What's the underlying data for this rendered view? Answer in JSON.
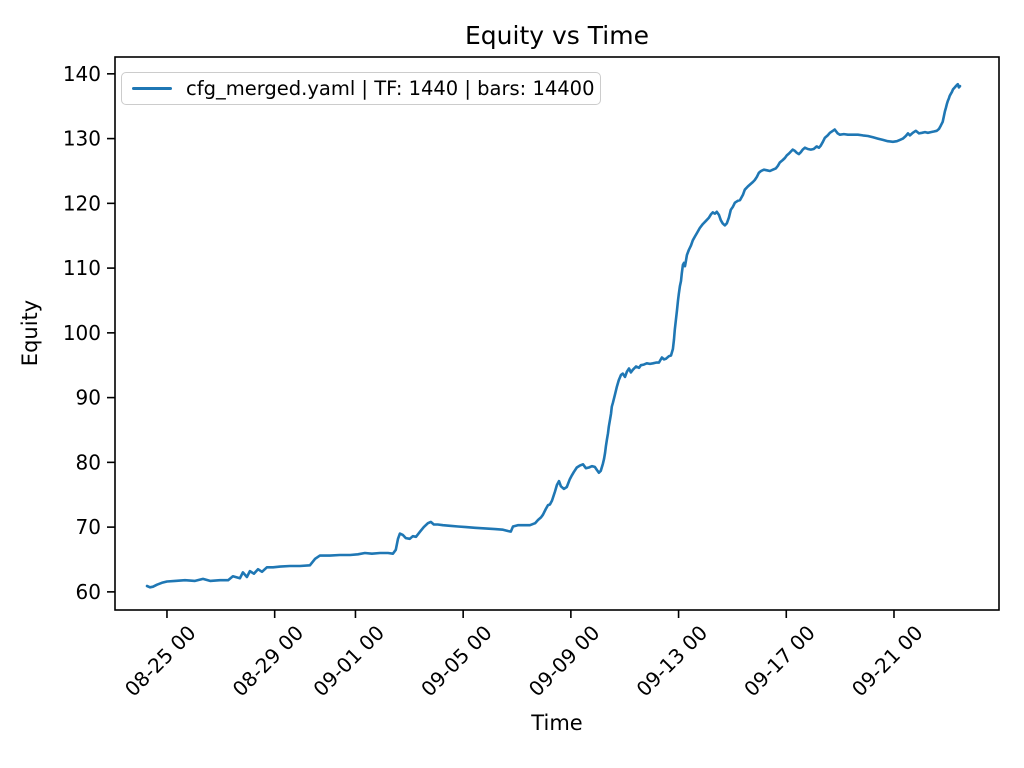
{
  "chart_data": {
    "type": "line",
    "title": "Equity vs Time",
    "xlabel": "Time",
    "ylabel": "Equity",
    "grid": false,
    "legend_position": "upper left",
    "line_color": "#1f77b4",
    "axis_color": "#000000",
    "x_unit": "days since 08-25 00",
    "xlim_days": [
      -1.93,
      30.9
    ],
    "ylim": [
      57.2,
      142.6
    ],
    "y_ticks": [
      60,
      70,
      80,
      90,
      100,
      110,
      120,
      130,
      140
    ],
    "x_ticks": [
      {
        "d": 0,
        "label": "08-25 00"
      },
      {
        "d": 4,
        "label": "08-29 00"
      },
      {
        "d": 7,
        "label": "09-01 00"
      },
      {
        "d": 11,
        "label": "09-05 00"
      },
      {
        "d": 15,
        "label": "09-09 00"
      },
      {
        "d": 19,
        "label": "09-13 00"
      },
      {
        "d": 23,
        "label": "09-17 00"
      },
      {
        "d": 27,
        "label": "09-21 00"
      }
    ],
    "series": [
      {
        "name": "cfg_merged.yaml | TF: 1440 | bars: 14400",
        "points": [
          [
            -0.74,
            60.9
          ],
          [
            -0.63,
            60.7
          ],
          [
            -0.52,
            60.8
          ],
          [
            -0.37,
            61.1
          ],
          [
            -0.19,
            61.4
          ],
          [
            0,
            61.6
          ],
          [
            0.3,
            61.7
          ],
          [
            0.67,
            61.8
          ],
          [
            1.04,
            61.7
          ],
          [
            1.34,
            62.0
          ],
          [
            1.6,
            61.7
          ],
          [
            1.97,
            61.8
          ],
          [
            2.27,
            61.8
          ],
          [
            2.45,
            62.4
          ],
          [
            2.71,
            62.1
          ],
          [
            2.82,
            63.0
          ],
          [
            2.97,
            62.3
          ],
          [
            3.08,
            63.2
          ],
          [
            3.23,
            62.8
          ],
          [
            3.38,
            63.5
          ],
          [
            3.53,
            63.1
          ],
          [
            3.71,
            63.8
          ],
          [
            3.94,
            63.8
          ],
          [
            4.2,
            63.9
          ],
          [
            4.57,
            64.0
          ],
          [
            4.94,
            64.0
          ],
          [
            5.31,
            64.1
          ],
          [
            5.5,
            65.1
          ],
          [
            5.68,
            65.6
          ],
          [
            6.05,
            65.6
          ],
          [
            6.42,
            65.7
          ],
          [
            6.8,
            65.7
          ],
          [
            7.09,
            65.8
          ],
          [
            7.35,
            66.0
          ],
          [
            7.61,
            65.9
          ],
          [
            7.91,
            66.0
          ],
          [
            8.21,
            66.0
          ],
          [
            8.39,
            65.9
          ],
          [
            8.5,
            66.5
          ],
          [
            8.58,
            68.2
          ],
          [
            8.65,
            69.0
          ],
          [
            8.76,
            68.8
          ],
          [
            8.87,
            68.3
          ],
          [
            9.02,
            68.2
          ],
          [
            9.13,
            68.6
          ],
          [
            9.25,
            68.5
          ],
          [
            9.4,
            69.3
          ],
          [
            9.54,
            70.0
          ],
          [
            9.69,
            70.6
          ],
          [
            9.8,
            70.8
          ],
          [
            9.91,
            70.4
          ],
          [
            10.06,
            70.4
          ],
          [
            10.25,
            70.3
          ],
          [
            10.51,
            70.2
          ],
          [
            10.81,
            70.1
          ],
          [
            11.1,
            70.0
          ],
          [
            11.44,
            69.9
          ],
          [
            11.81,
            69.8
          ],
          [
            12.18,
            69.7
          ],
          [
            12.48,
            69.6
          ],
          [
            12.66,
            69.4
          ],
          [
            12.77,
            69.3
          ],
          [
            12.85,
            70.1
          ],
          [
            13.03,
            70.3
          ],
          [
            13.26,
            70.3
          ],
          [
            13.48,
            70.3
          ],
          [
            13.67,
            70.6
          ],
          [
            13.78,
            71.1
          ],
          [
            13.89,
            71.5
          ],
          [
            13.96,
            71.9
          ],
          [
            14.07,
            72.8
          ],
          [
            14.15,
            73.4
          ],
          [
            14.22,
            73.5
          ],
          [
            14.3,
            74.1
          ],
          [
            14.41,
            75.5
          ],
          [
            14.48,
            76.5
          ],
          [
            14.56,
            77.1
          ],
          [
            14.63,
            76.3
          ],
          [
            14.74,
            75.9
          ],
          [
            14.85,
            76.2
          ],
          [
            14.96,
            77.4
          ],
          [
            15.04,
            78.0
          ],
          [
            15.11,
            78.5
          ],
          [
            15.22,
            79.2
          ],
          [
            15.33,
            79.5
          ],
          [
            15.45,
            79.7
          ],
          [
            15.56,
            79.1
          ],
          [
            15.67,
            79.2
          ],
          [
            15.78,
            79.4
          ],
          [
            15.89,
            79.3
          ],
          [
            15.97,
            78.8
          ],
          [
            16.04,
            78.4
          ],
          [
            16.11,
            78.7
          ],
          [
            16.19,
            79.8
          ],
          [
            16.23,
            80.5
          ],
          [
            16.27,
            81.5
          ],
          [
            16.3,
            82.5
          ],
          [
            16.34,
            83.5
          ],
          [
            16.38,
            84.5
          ],
          [
            16.41,
            85.5
          ],
          [
            16.45,
            86.5
          ],
          [
            16.49,
            87.5
          ],
          [
            16.52,
            88.6
          ],
          [
            16.56,
            89.2
          ],
          [
            16.64,
            90.5
          ],
          [
            16.71,
            91.7
          ],
          [
            16.78,
            92.7
          ],
          [
            16.86,
            93.5
          ],
          [
            16.93,
            93.7
          ],
          [
            17.01,
            93.2
          ],
          [
            17.08,
            94.0
          ],
          [
            17.16,
            94.5
          ],
          [
            17.23,
            93.9
          ],
          [
            17.3,
            94.3
          ],
          [
            17.42,
            94.8
          ],
          [
            17.53,
            94.6
          ],
          [
            17.6,
            95.0
          ],
          [
            17.71,
            95.1
          ],
          [
            17.82,
            95.3
          ],
          [
            17.94,
            95.2
          ],
          [
            18.05,
            95.3
          ],
          [
            18.16,
            95.4
          ],
          [
            18.27,
            95.4
          ],
          [
            18.38,
            96.2
          ],
          [
            18.46,
            95.9
          ],
          [
            18.53,
            96.0
          ],
          [
            18.64,
            96.4
          ],
          [
            18.72,
            96.5
          ],
          [
            18.79,
            97.5
          ],
          [
            18.83,
            99.0
          ],
          [
            18.86,
            100.5
          ],
          [
            18.9,
            102.0
          ],
          [
            18.94,
            103.5
          ],
          [
            18.98,
            105.0
          ],
          [
            19.01,
            106.0
          ],
          [
            19.05,
            107.2
          ],
          [
            19.09,
            108.0
          ],
          [
            19.12,
            109.2
          ],
          [
            19.16,
            110.5
          ],
          [
            19.2,
            110.8
          ],
          [
            19.24,
            110.3
          ],
          [
            19.27,
            111.0
          ],
          [
            19.31,
            112.0
          ],
          [
            19.38,
            112.8
          ],
          [
            19.46,
            113.5
          ],
          [
            19.53,
            114.3
          ],
          [
            19.61,
            114.9
          ],
          [
            19.68,
            115.4
          ],
          [
            19.79,
            116.2
          ],
          [
            19.9,
            116.8
          ],
          [
            20.02,
            117.3
          ],
          [
            20.13,
            117.8
          ],
          [
            20.2,
            118.3
          ],
          [
            20.27,
            118.6
          ],
          [
            20.35,
            118.4
          ],
          [
            20.42,
            118.7
          ],
          [
            20.5,
            118.2
          ],
          [
            20.57,
            117.4
          ],
          [
            20.64,
            116.9
          ],
          [
            20.72,
            116.6
          ],
          [
            20.79,
            116.9
          ],
          [
            20.87,
            117.8
          ],
          [
            20.94,
            119.0
          ],
          [
            21.02,
            119.5
          ],
          [
            21.09,
            120.1
          ],
          [
            21.2,
            120.4
          ],
          [
            21.28,
            120.5
          ],
          [
            21.39,
            121.3
          ],
          [
            21.46,
            122.1
          ],
          [
            21.57,
            122.6
          ],
          [
            21.65,
            122.9
          ],
          [
            21.76,
            123.3
          ],
          [
            21.83,
            123.6
          ],
          [
            21.91,
            124.1
          ],
          [
            21.98,
            124.7
          ],
          [
            22.06,
            125.0
          ],
          [
            22.17,
            125.2
          ],
          [
            22.28,
            125.1
          ],
          [
            22.39,
            125.0
          ],
          [
            22.5,
            125.2
          ],
          [
            22.61,
            125.4
          ],
          [
            22.69,
            125.8
          ],
          [
            22.76,
            126.3
          ],
          [
            22.87,
            126.7
          ],
          [
            22.95,
            127.0
          ],
          [
            23.02,
            127.4
          ],
          [
            23.1,
            127.7
          ],
          [
            23.17,
            128.0
          ],
          [
            23.24,
            128.3
          ],
          [
            23.32,
            128.1
          ],
          [
            23.39,
            127.8
          ],
          [
            23.47,
            127.6
          ],
          [
            23.54,
            127.9
          ],
          [
            23.61,
            128.3
          ],
          [
            23.69,
            128.6
          ],
          [
            23.8,
            128.4
          ],
          [
            23.91,
            128.3
          ],
          [
            24.02,
            128.4
          ],
          [
            24.13,
            128.8
          ],
          [
            24.21,
            128.6
          ],
          [
            24.28,
            128.9
          ],
          [
            24.36,
            129.5
          ],
          [
            24.43,
            130.1
          ],
          [
            24.54,
            130.5
          ],
          [
            24.62,
            130.9
          ],
          [
            24.73,
            131.2
          ],
          [
            24.8,
            131.4
          ],
          [
            24.91,
            130.8
          ],
          [
            24.99,
            130.6
          ],
          [
            25.14,
            130.7
          ],
          [
            25.29,
            130.6
          ],
          [
            25.47,
            130.6
          ],
          [
            25.66,
            130.6
          ],
          [
            25.84,
            130.5
          ],
          [
            26.03,
            130.4
          ],
          [
            26.22,
            130.2
          ],
          [
            26.4,
            130.0
          ],
          [
            26.59,
            129.8
          ],
          [
            26.77,
            129.6
          ],
          [
            26.96,
            129.5
          ],
          [
            27.11,
            129.6
          ],
          [
            27.22,
            129.8
          ],
          [
            27.33,
            130.0
          ],
          [
            27.44,
            130.4
          ],
          [
            27.52,
            130.8
          ],
          [
            27.59,
            130.5
          ],
          [
            27.7,
            130.9
          ],
          [
            27.81,
            131.2
          ],
          [
            27.93,
            130.8
          ],
          [
            28.04,
            130.9
          ],
          [
            28.15,
            131.0
          ],
          [
            28.26,
            130.9
          ],
          [
            28.37,
            131.0
          ],
          [
            28.48,
            131.1
          ],
          [
            28.59,
            131.2
          ],
          [
            28.67,
            131.5
          ],
          [
            28.74,
            132.0
          ],
          [
            28.81,
            132.6
          ],
          [
            28.85,
            133.4
          ],
          [
            28.89,
            134.2
          ],
          [
            28.93,
            134.8
          ],
          [
            28.96,
            135.3
          ],
          [
            29.0,
            135.8
          ],
          [
            29.04,
            136.2
          ],
          [
            29.07,
            136.6
          ],
          [
            29.11,
            136.9
          ],
          [
            29.15,
            137.2
          ],
          [
            29.19,
            137.6
          ],
          [
            29.26,
            137.9
          ],
          [
            29.3,
            138.1
          ],
          [
            29.37,
            138.4
          ],
          [
            29.41,
            137.9
          ],
          [
            29.45,
            138.1
          ]
        ]
      }
    ]
  }
}
